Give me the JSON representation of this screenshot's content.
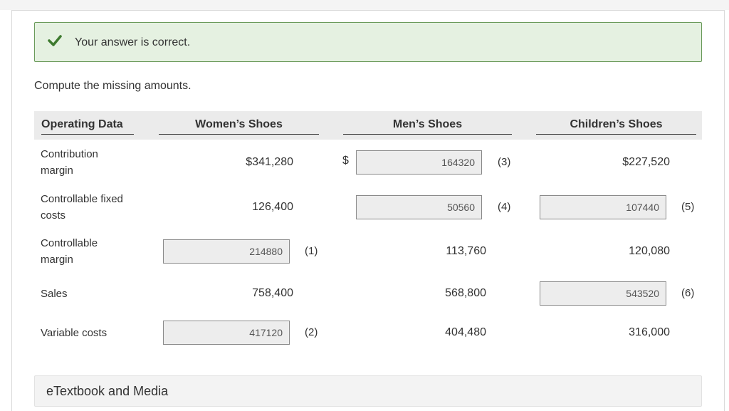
{
  "alert": {
    "message": "Your answer is correct."
  },
  "instruction": "Compute the missing amounts.",
  "headers": {
    "operating_data": "Operating Data",
    "womens": "Women’s Shoes",
    "mens": "Men’s Shoes",
    "childrens": "Children’s Shoes"
  },
  "rows": {
    "contribution_margin": {
      "label": "Contribution margin",
      "womens": "$341,280",
      "mens_currency": "$",
      "mens_input": "164320",
      "mens_ref": "(3)",
      "childrens": "$227,520"
    },
    "controllable_fixed_costs": {
      "label": "Controllable fixed costs",
      "womens": "126,400",
      "mens_input": "50560",
      "mens_ref": "(4)",
      "childrens_input": "107440",
      "childrens_ref": "(5)"
    },
    "controllable_margin": {
      "label": "Controllable margin",
      "womens_input": "214880",
      "womens_ref": "(1)",
      "mens": "113,760",
      "childrens": "120,080"
    },
    "sales": {
      "label": "Sales",
      "womens": "758,400",
      "mens": "568,800",
      "childrens_input": "543520",
      "childrens_ref": "(6)"
    },
    "variable_costs": {
      "label": "Variable costs",
      "womens_input": "417120",
      "womens_ref": "(2)",
      "mens": "404,480",
      "childrens": "316,000"
    }
  },
  "etextbook": {
    "label": "eTextbook and Media"
  },
  "colors": {
    "success_bg": "#e5f1e1",
    "success_border": "#6a9a5a",
    "check": "#3d7a2e"
  }
}
